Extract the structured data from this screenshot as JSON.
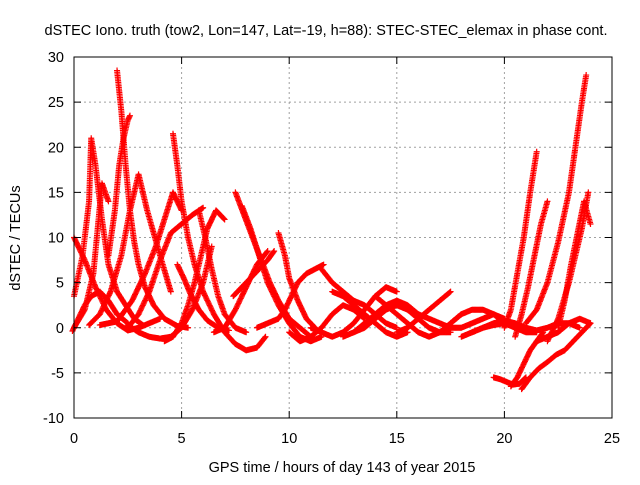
{
  "chart_data": {
    "type": "scatter",
    "title": "dSTEC Iono. truth (tow2, Lon=147, Lat=-19, h=88): STEC-STEC_elemax in phase cont.",
    "xlabel": "GPS time / hours of day 143 of year 2015",
    "ylabel": "dSTEC  / TECUs",
    "xlim": [
      0,
      25
    ],
    "ylim": [
      -10,
      30
    ],
    "xticks": [
      0,
      5,
      10,
      15,
      20,
      25
    ],
    "yticks": [
      -10,
      -5,
      0,
      5,
      10,
      15,
      20,
      25,
      30
    ],
    "grid": true,
    "marker": "plus",
    "color": "#ff0000",
    "series": [
      {
        "x": [
          0.0,
          0.5,
          1.0,
          1.5,
          2.0,
          2.5,
          3.0,
          3.5,
          4.0
        ],
        "y": [
          10.0,
          7.5,
          4.5,
          2.0,
          0.5,
          -0.3,
          0.0,
          0.5,
          1.0
        ]
      },
      {
        "x": [
          -0.1,
          0.2,
          0.5,
          0.8,
          1.2,
          1.6,
          2.0,
          2.5
        ],
        "y": [
          -0.5,
          1.0,
          2.5,
          3.5,
          4.0,
          3.0,
          1.5,
          0.5
        ]
      },
      {
        "x": [
          0.0,
          0.4,
          0.7,
          0.8,
          1.0,
          1.3,
          1.6,
          2.0,
          2.4,
          2.8,
          3.2
        ],
        "y": [
          3.5,
          8.0,
          14.0,
          21.0,
          18.0,
          12.0,
          7.0,
          4.0,
          2.5,
          1.0,
          0.3
        ]
      },
      {
        "x": [
          0.0,
          0.5,
          0.9,
          1.1,
          1.3,
          1.6
        ],
        "y": [
          0.0,
          2.0,
          6.0,
          11.0,
          16.0,
          14.0
        ]
      },
      {
        "x": [
          0.7,
          1.2,
          1.7,
          2.2,
          2.6,
          3.0,
          3.4,
          4.0,
          4.5
        ],
        "y": [
          0.3,
          1.5,
          4.0,
          8.0,
          13.0,
          17.0,
          13.0,
          8.0,
          4.0
        ]
      },
      {
        "x": [
          2.0,
          2.2,
          2.4,
          2.6,
          2.8,
          3.0,
          3.3,
          3.7,
          4.2,
          4.8,
          5.3
        ],
        "y": [
          28.5,
          24.0,
          18.0,
          13.0,
          9.5,
          7.0,
          4.5,
          2.5,
          1.0,
          0.2,
          0.0
        ]
      },
      {
        "x": [
          1.6,
          1.9,
          2.1,
          2.3,
          2.5,
          2.6
        ],
        "y": [
          8.0,
          13.0,
          18.0,
          21.0,
          23.0,
          23.5
        ]
      },
      {
        "x": [
          1.2,
          2.0,
          2.7,
          3.3,
          3.8,
          4.2,
          4.6,
          5.0
        ],
        "y": [
          0.3,
          0.7,
          3.0,
          6.0,
          9.0,
          12.0,
          15.0,
          13.0
        ]
      },
      {
        "x": [
          2.5,
          3.0,
          3.5,
          4.0,
          4.5,
          5.0,
          5.5,
          6.0
        ],
        "y": [
          0.0,
          1.5,
          4.0,
          7.5,
          10.5,
          11.5,
          12.5,
          13.3
        ]
      },
      {
        "x": [
          4.6,
          4.8,
          5.0,
          5.3,
          5.6,
          6.0,
          6.5,
          7.0,
          7.5,
          8.0,
          8.5,
          8.9
        ],
        "y": [
          21.5,
          18.0,
          14.0,
          10.0,
          7.0,
          4.0,
          1.5,
          -0.5,
          -1.8,
          -2.5,
          -2.2,
          -1.0
        ]
      },
      {
        "x": [
          2.5,
          3.0,
          3.5,
          4.0,
          4.5,
          5.0,
          5.5,
          6.0,
          6.4
        ],
        "y": [
          0.3,
          -0.5,
          -1.0,
          -1.2,
          -1.0,
          0.0,
          2.0,
          5.0,
          9.0
        ]
      },
      {
        "x": [
          4.2,
          4.6,
          5.0,
          5.3,
          5.6,
          5.9,
          6.2,
          6.6,
          7.0
        ],
        "y": [
          -1.5,
          -1.0,
          0.5,
          2.5,
          5.0,
          8.0,
          11.0,
          13.0,
          12.0
        ]
      },
      {
        "x": [
          4.8,
          5.1,
          5.4,
          5.8,
          6.2,
          6.7,
          7.2
        ],
        "y": [
          7.0,
          5.5,
          3.8,
          2.0,
          0.8,
          0.0,
          -0.3
        ]
      },
      {
        "x": [
          5.8,
          6.1,
          6.4,
          6.7,
          7.0,
          7.5,
          8.0
        ],
        "y": [
          13.0,
          10.0,
          6.5,
          3.5,
          1.5,
          0.0,
          -0.5
        ]
      },
      {
        "x": [
          6.5,
          7.0,
          7.5,
          8.0,
          8.5,
          9.0
        ],
        "y": [
          -0.5,
          0.0,
          2.0,
          4.5,
          7.0,
          8.5
        ]
      },
      {
        "x": [
          7.5,
          7.9,
          8.3,
          8.7,
          9.1,
          9.5,
          10.0,
          10.5,
          11.0
        ],
        "y": [
          15.0,
          12.5,
          10.0,
          7.5,
          5.0,
          3.0,
          1.0,
          0.0,
          -1.0
        ]
      },
      {
        "x": [
          7.8,
          8.2,
          8.6,
          9.0,
          9.5,
          10.0,
          10.5,
          11.0,
          11.5
        ],
        "y": [
          13.5,
          11.0,
          8.0,
          5.0,
          2.5,
          0.5,
          -1.0,
          -1.5,
          -1.0
        ]
      },
      {
        "x": [
          7.4,
          7.8,
          8.2,
          8.6,
          9.0,
          9.3
        ],
        "y": [
          3.5,
          4.5,
          5.5,
          6.5,
          7.5,
          8.5
        ]
      },
      {
        "x": [
          8.5,
          9.0,
          9.5,
          9.8,
          10.1,
          10.4,
          10.8,
          11.2,
          11.6
        ],
        "y": [
          0.0,
          0.5,
          1.0,
          2.0,
          3.5,
          5.0,
          6.0,
          6.5,
          7.0
        ]
      },
      {
        "x": [
          9.5,
          9.8,
          10.0,
          10.4,
          10.8,
          11.2
        ],
        "y": [
          10.5,
          8.0,
          5.5,
          3.0,
          1.0,
          0.0
        ]
      },
      {
        "x": [
          10.0,
          10.5,
          11.0,
          11.5,
          12.0,
          12.5,
          13.0,
          13.5
        ],
        "y": [
          -0.5,
          -1.5,
          -1.0,
          0.0,
          1.5,
          2.5,
          2.0,
          1.0
        ]
      },
      {
        "x": [
          11.0,
          11.5,
          12.0,
          12.5,
          13.0,
          13.5,
          14.0,
          14.5,
          15.0
        ],
        "y": [
          0.0,
          -0.5,
          -1.0,
          -0.5,
          0.5,
          2.0,
          3.5,
          4.5,
          4.0
        ]
      },
      {
        "x": [
          11.5,
          12.0,
          12.5,
          13.0,
          13.5,
          14.0,
          14.5,
          15.0
        ],
        "y": [
          6.5,
          5.0,
          4.0,
          3.0,
          2.5,
          1.5,
          0.5,
          0.0
        ]
      },
      {
        "x": [
          12.0,
          12.5,
          13.0,
          13.5,
          14.0,
          14.5,
          15.0,
          15.5
        ],
        "y": [
          4.0,
          3.5,
          2.5,
          1.5,
          0.5,
          -0.5,
          -1.0,
          -0.5
        ]
      },
      {
        "x": [
          12.5,
          13.0,
          13.5,
          14.0,
          14.5,
          15.0,
          15.5,
          16.0
        ],
        "y": [
          -1.0,
          -0.5,
          0.5,
          1.5,
          2.5,
          3.0,
          2.5,
          1.5
        ]
      },
      {
        "x": [
          13.0,
          13.5,
          14.0,
          14.5,
          15.0,
          15.5,
          16.0,
          16.5,
          17.0,
          17.5
        ],
        "y": [
          -0.5,
          0.0,
          1.0,
          2.0,
          2.5,
          2.0,
          1.0,
          0.0,
          -0.5,
          -0.5
        ]
      },
      {
        "x": [
          14.0,
          14.5,
          15.0,
          15.5,
          16.0,
          16.5,
          17.0,
          17.5,
          18.0
        ],
        "y": [
          3.5,
          2.5,
          1.5,
          0.5,
          -0.5,
          -1.0,
          -0.5,
          0.5,
          1.5
        ]
      },
      {
        "x": [
          15.0,
          15.5,
          16.0,
          16.5,
          17.0,
          17.5
        ],
        "y": [
          -0.5,
          0.0,
          1.0,
          2.0,
          3.0,
          4.0
        ]
      },
      {
        "x": [
          16.0,
          16.5,
          17.0,
          17.5,
          18.0,
          18.5,
          19.0,
          19.5,
          20.0
        ],
        "y": [
          1.5,
          1.0,
          0.5,
          0.0,
          0.0,
          0.5,
          1.0,
          1.5,
          1.0
        ]
      },
      {
        "x": [
          17.5,
          18.0,
          18.5,
          19.0,
          19.5,
          20.0,
          20.5,
          21.0,
          21.5
        ],
        "y": [
          0.5,
          1.5,
          2.0,
          2.0,
          1.5,
          0.5,
          0.0,
          -0.5,
          -0.5
        ]
      },
      {
        "x": [
          18.0,
          18.5,
          19.0,
          19.5,
          20.0,
          20.5,
          21.0
        ],
        "y": [
          -1.0,
          -0.5,
          0.0,
          0.5,
          0.8,
          0.5,
          0.0
        ]
      },
      {
        "x": [
          19.5,
          19.8,
          20.1,
          20.4,
          20.7,
          21.0
        ],
        "y": [
          -5.5,
          -5.7,
          -6.0,
          -6.3,
          -6.2,
          -5.5
        ]
      },
      {
        "x": [
          20.3,
          20.6,
          20.9,
          21.2,
          21.5,
          21.8
        ],
        "y": [
          -6.5,
          -5.5,
          -4.0,
          -2.5,
          -1.5,
          -0.5
        ]
      },
      {
        "x": [
          20.8,
          21.2,
          21.6,
          22.0,
          22.4,
          22.8,
          23.2,
          23.6,
          24.0
        ],
        "y": [
          -6.8,
          -5.5,
          -4.5,
          -3.8,
          -3.0,
          -2.5,
          -1.5,
          -0.5,
          0.5
        ]
      },
      {
        "x": [
          20.0,
          20.3,
          20.6,
          20.9,
          21.2,
          21.5
        ],
        "y": [
          0.0,
          2.0,
          6.0,
          10.0,
          15.0,
          19.5
        ]
      },
      {
        "x": [
          20.5,
          20.8,
          21.1,
          21.4,
          21.7,
          22.0
        ],
        "y": [
          -1.0,
          1.5,
          4.5,
          8.0,
          11.5,
          14.0
        ]
      },
      {
        "x": [
          21.0,
          21.5,
          22.0,
          22.5,
          23.0,
          23.3,
          23.6,
          23.8
        ],
        "y": [
          0.5,
          2.0,
          5.0,
          9.5,
          15.0,
          20.0,
          25.0,
          28.0
        ]
      },
      {
        "x": [
          21.5,
          22.0,
          22.5,
          23.0,
          23.5,
          24.0
        ],
        "y": [
          -1.5,
          -1.0,
          -0.5,
          0.5,
          1.0,
          0.5
        ]
      },
      {
        "x": [
          22.0,
          22.5,
          23.0,
          23.3,
          23.6,
          23.9
        ],
        "y": [
          -1.5,
          1.0,
          5.0,
          8.0,
          11.0,
          15.0
        ]
      },
      {
        "x": [
          22.5,
          22.8,
          23.1,
          23.4,
          23.7,
          24.0
        ],
        "y": [
          0.0,
          3.0,
          7.0,
          10.5,
          14.0,
          11.5
        ]
      },
      {
        "x": [
          18.5,
          19.0,
          19.5,
          20.0,
          20.5,
          21.0,
          21.5,
          22.0,
          22.5,
          23.0,
          23.5
        ],
        "y": [
          -0.5,
          0.0,
          0.3,
          0.5,
          0.3,
          0.0,
          -0.3,
          0.0,
          0.5,
          0.5,
          0.0
        ]
      }
    ]
  }
}
